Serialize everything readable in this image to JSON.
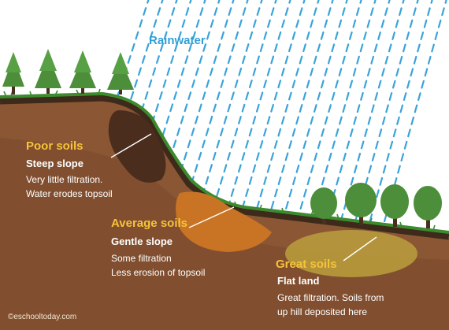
{
  "rain": {
    "label": "Rainwater"
  },
  "poor": {
    "heading": "Poor soils",
    "slope": "Steep slope",
    "lines": [
      "Very little filtration.",
      "Water erodes topsoil"
    ]
  },
  "average": {
    "heading": "Average soils",
    "slope": "Gentle  slope",
    "lines": [
      "Some filtration",
      "Less erosion of topsoil"
    ]
  },
  "great": {
    "heading": "Great soils",
    "slope": "Flat land",
    "lines": [
      "Great filtration. Soils from",
      "up hill deposited here"
    ]
  },
  "credit": "©eschooltoday.com",
  "colors": {
    "soil": "#8a5634",
    "soil_dark": "#5c3822",
    "topsoil": "#3d2a1b",
    "grass": "#3c8b2e",
    "tree": "#4c8e3a",
    "trunk": "#4a2f1e",
    "rain": "#3aa3da",
    "poor_pocket": "#4a2d1d",
    "average_pocket": "#c87424",
    "great_pocket": "#b79a3c",
    "heading": "#f6c43a"
  }
}
